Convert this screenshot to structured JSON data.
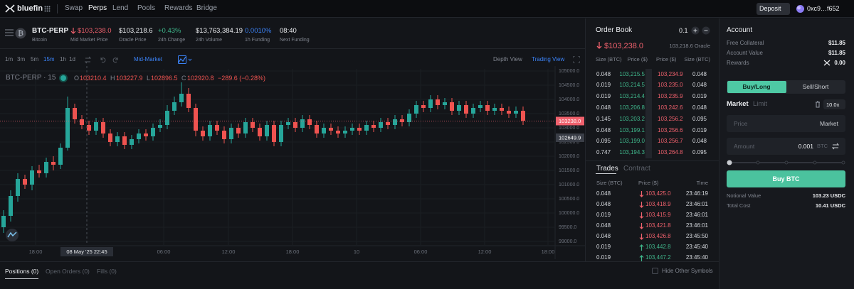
{
  "nav": {
    "brand": "bluefin",
    "menu": [
      "Swap",
      "Perps",
      "Lend",
      "Pools",
      "Rewards",
      "Bridge"
    ],
    "active": 1,
    "deposit": "Deposit",
    "wallet": "0xc9…f652"
  },
  "market": {
    "symbol": "BTC-PERP",
    "name": "Bitcoin",
    "stats": [
      {
        "value": "$103,238.0",
        "label": "Mid Market Price",
        "color": "#f0616d"
      },
      {
        "value": "$103,218.6",
        "label": "Oracle Price"
      },
      {
        "value": "+0.43%",
        "label": "24h Change",
        "color": "#3fb68b"
      },
      {
        "value": "$13,763,384.19",
        "label": "24h Volume"
      },
      {
        "value": "0.0010%",
        "label": "1h Funding",
        "color": "#3b82f6"
      },
      {
        "value": "08:40",
        "label": "Next Funding"
      }
    ]
  },
  "toolbar": {
    "intervals": [
      "1m",
      "3m",
      "5m",
      "15m",
      "1h",
      "1d"
    ],
    "active_interval": 3,
    "price_source": "Mid-Market",
    "views": [
      "Depth View",
      "Trading View"
    ],
    "active_view": 1
  },
  "chart_data": {
    "type": "candlestick",
    "title": "BTC-PERP · 15",
    "ohlc": [
      {
        "label": "O",
        "value": 103210.4
      },
      {
        "label": "H",
        "value": 103227.9
      },
      {
        "label": "L",
        "value": 102896.5
      },
      {
        "label": "C",
        "value": 102920.8
      }
    ],
    "change": "−289.6 (−0.28%)",
    "up_color": "#26a69a",
    "down_color": "#ef5350",
    "open": [
      99500,
      99900,
      100600,
      101200,
      101000,
      101500,
      101400,
      101800,
      101700,
      102300,
      103700,
      103300,
      103100,
      102900,
      103200,
      102800,
      102500,
      102700,
      102400,
      102600,
      102800,
      102700,
      103000,
      103100,
      103600,
      103900,
      104200,
      103700,
      102900,
      102700,
      103100,
      102900,
      102600,
      103000,
      102800,
      103200,
      103000,
      102700,
      103100,
      102500,
      103100,
      103200,
      103000,
      103300,
      103100,
      102800,
      103000,
      102900,
      102800,
      102900,
      103000,
      102900,
      103100,
      103000,
      103200,
      103100,
      103300,
      103200,
      103500,
      103800,
      103700,
      104000,
      103800,
      103900,
      103600,
      103800,
      103500,
      103700,
      103800,
      103600,
      103700,
      103600,
      103500,
      103600
    ],
    "high": [
      100100,
      100800,
      101400,
      101350,
      101650,
      101700,
      101950,
      102000,
      102450,
      104100,
      103850,
      103450,
      103250,
      103350,
      103350,
      102950,
      102850,
      102850,
      102750,
      102950,
      102950,
      103150,
      103300,
      103800,
      104100,
      104600,
      104400,
      103850,
      103050,
      103250,
      103250,
      103050,
      103150,
      103150,
      103350,
      103350,
      103150,
      103250,
      103250,
      103250,
      103350,
      103350,
      103450,
      103450,
      103250,
      103150,
      103150,
      103050,
      103050,
      103150,
      103150,
      103250,
      103250,
      103350,
      103350,
      103450,
      103450,
      103650,
      103950,
      103950,
      104150,
      104150,
      104050,
      104050,
      103950,
      103950,
      103850,
      103950,
      103950,
      103850,
      103850,
      103750,
      103750,
      103750
    ],
    "low": [
      99300,
      99700,
      100400,
      100850,
      100800,
      101250,
      101250,
      101500,
      101550,
      102200,
      103150,
      102950,
      102750,
      102750,
      102650,
      102350,
      102350,
      102250,
      102250,
      102450,
      102550,
      102550,
      102850,
      102950,
      103450,
      103750,
      103550,
      102700,
      102550,
      102550,
      102750,
      102450,
      102450,
      102650,
      102650,
      102850,
      102550,
      102550,
      102350,
      102350,
      102950,
      102850,
      102850,
      102950,
      102650,
      102650,
      102750,
      102650,
      102650,
      102750,
      102750,
      102750,
      102850,
      102850,
      102950,
      102950,
      103050,
      103050,
      103350,
      103550,
      103550,
      103650,
      103650,
      103450,
      103450,
      103350,
      103350,
      103550,
      103450,
      103450,
      103450,
      103350,
      103350,
      103100
    ],
    "close": [
      99900,
      100600,
      101200,
      101000,
      101500,
      101400,
      101800,
      101700,
      102300,
      103700,
      103300,
      103100,
      102900,
      103200,
      102800,
      102500,
      102700,
      102400,
      102600,
      102800,
      102700,
      103000,
      103100,
      103600,
      103900,
      104200,
      103700,
      102900,
      102700,
      103100,
      102900,
      102600,
      103000,
      102800,
      103200,
      103000,
      102700,
      103100,
      102500,
      103100,
      103200,
      103000,
      103300,
      103100,
      102800,
      103000,
      102900,
      102800,
      102900,
      103000,
      102900,
      103100,
      103000,
      103200,
      103100,
      103300,
      103200,
      103500,
      103800,
      103700,
      104000,
      103800,
      103900,
      103600,
      103800,
      103500,
      103700,
      103800,
      103600,
      103700,
      103600,
      103500,
      103600,
      103250
    ],
    "xlim": [
      -0.5,
      77.5
    ],
    "xticks": [
      {
        "value": 4.5,
        "label": "18:00"
      },
      {
        "value": 22.5,
        "label": "06:00"
      },
      {
        "value": 31.6,
        "label": "12:00"
      },
      {
        "value": 40.6,
        "label": "18:00"
      },
      {
        "value": 49.6,
        "label": "10"
      },
      {
        "value": 58.6,
        "label": "06:00"
      },
      {
        "value": 67.6,
        "label": "12:00"
      },
      {
        "value": 76.5,
        "label": "18:00"
      }
    ],
    "ylim": [
      98875,
      105075
    ],
    "yticks": [
      {
        "value": 99000,
        "label": "99000.0"
      },
      {
        "value": 99500,
        "label": "99500.0"
      },
      {
        "value": 100000,
        "label": "100000.0"
      },
      {
        "value": 100500,
        "label": "100500.0"
      },
      {
        "value": 101000,
        "label": "101000.0"
      },
      {
        "value": 101500,
        "label": "101500.0"
      },
      {
        "value": 102000,
        "label": "102000.0"
      },
      {
        "value": 102500,
        "label": "102500.0"
      },
      {
        "value": 103000,
        "label": "103000.0"
      },
      {
        "value": 103500,
        "label": "103500.0"
      },
      {
        "value": 104000,
        "label": "104000.0"
      },
      {
        "value": 104500,
        "label": "104500.0"
      },
      {
        "value": 105000,
        "label": "105000.0"
      }
    ],
    "grid": true,
    "crosshair": {
      "x": 11.7,
      "label": "08 May '25  22:45"
    },
    "price_lines": [
      {
        "value": 103238.0,
        "label": "103238.0",
        "color": "#f0616d"
      },
      {
        "value": 102649.9,
        "label": "102649.9",
        "color": "#3a3e47"
      }
    ]
  },
  "order_book": {
    "title": "Order Book",
    "step": "0.1",
    "mid_price": "$103,238.0",
    "oracle": "103,218.6 Oracle",
    "headers": [
      "Size (BTC)",
      "Price ($)",
      "Price ($)",
      "Size (BTC)"
    ],
    "rows": [
      [
        "0.048",
        "103,215.5",
        "103,234.9",
        "0.048"
      ],
      [
        "0.019",
        "103,214.5",
        "103,235.0",
        "0.048"
      ],
      [
        "0.019",
        "103,214.4",
        "103,235.9",
        "0.019"
      ],
      [
        "0.048",
        "103,206.8",
        "103,242.6",
        "0.048"
      ],
      [
        "0.145",
        "103,203.2",
        "103,256.2",
        "0.095"
      ],
      [
        "0.048",
        "103,199.1",
        "103,256.6",
        "0.019"
      ],
      [
        "0.095",
        "103,199.0",
        "103,256.7",
        "0.048"
      ],
      [
        "0.747",
        "103,194.3",
        "103,264.8",
        "0.095"
      ]
    ]
  },
  "trades": {
    "tabs": [
      "Trades",
      "Contract"
    ],
    "headers": [
      "Size (BTC)",
      "Price ($)",
      "Time"
    ],
    "rows": [
      {
        "size": "0.048",
        "price": "103,425.0",
        "time": "23:46:19",
        "color": "#f0616d"
      },
      {
        "size": "0.048",
        "price": "103,418.9",
        "time": "23:46:01",
        "color": "#f0616d"
      },
      {
        "size": "0.019",
        "price": "103,415.9",
        "time": "23:46:01",
        "color": "#f0616d"
      },
      {
        "size": "0.048",
        "price": "103,421.8",
        "time": "23:46:01",
        "color": "#f0616d"
      },
      {
        "size": "0.048",
        "price": "103,426.8",
        "time": "23:45:50",
        "color": "#f0616d"
      },
      {
        "size": "0.019",
        "price": "103,442.8",
        "time": "23:45:40",
        "color": "#3fb68b"
      },
      {
        "size": "0.019",
        "price": "103,447.2",
        "time": "23:45:40",
        "color": "#3fb68b"
      }
    ]
  },
  "account": {
    "title": "Account",
    "rows": [
      {
        "label": "Free Collateral",
        "value": "$11.85"
      },
      {
        "label": "Account Value",
        "value": "$11.85"
      },
      {
        "label": "Rewards",
        "value": "0.00"
      }
    ],
    "sides": [
      "Buy/Long",
      "Sell/Short"
    ],
    "order_types": [
      "Market",
      "Limit"
    ],
    "leverage": "10.0x",
    "price": {
      "label": "Price",
      "value": "Market"
    },
    "amount": {
      "label": "Amount",
      "value": "0.001",
      "unit": "BTC"
    },
    "submit": "Buy BTC",
    "summary": [
      {
        "label": "Notional Value",
        "value": "103.23 USDC"
      },
      {
        "label": "Total Cost",
        "value": "10.41 USDC"
      }
    ]
  },
  "bottom": {
    "tabs": [
      "Positions (0)",
      "Open Orders (0)",
      "Fills (0)"
    ],
    "hide": "Hide Other Symbols"
  }
}
